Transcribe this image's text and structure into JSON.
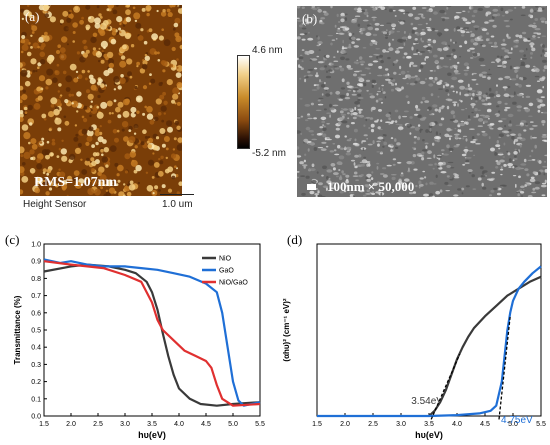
{
  "panel_a": {
    "label": "(a)",
    "rms": "RMS=1.07nm",
    "sensor": "Height Sensor",
    "scalebar": "1.0 um",
    "colorbar_max": "4.6 nm",
    "colorbar_min": "-5.2 nm"
  },
  "panel_b": {
    "label": "(b)",
    "caption": "100nm  × 50,000"
  },
  "colors": {
    "NiO": "#3a3a3a",
    "GaO": "#1f6fd6",
    "NiO_GaO": "#e03030"
  },
  "chart_data": [
    {
      "panel": "(c)",
      "type": "line",
      "xlabel": "hυ(eV)",
      "ylabel": "Transmittance (%)",
      "xlim": [
        1.5,
        5.5
      ],
      "ylim": [
        0.0,
        1.0
      ],
      "xticks": [
        "1.5",
        "2.0",
        "2.5",
        "3.0",
        "3.5",
        "4.0",
        "4.5",
        "5.0",
        "5.5"
      ],
      "yticks": [
        "0.0",
        "0.1",
        "0.2",
        "0.3",
        "0.4",
        "0.5",
        "0.6",
        "0.7",
        "0.8",
        "0.9",
        "1.0"
      ],
      "legend": "top-right",
      "series": [
        {
          "name": "NiO",
          "color": "#3a3a3a",
          "points": [
            [
              1.5,
              0.84
            ],
            [
              2.0,
              0.87
            ],
            [
              2.3,
              0.88
            ],
            [
              2.7,
              0.87
            ],
            [
              3.0,
              0.85
            ],
            [
              3.2,
              0.83
            ],
            [
              3.4,
              0.78
            ],
            [
              3.5,
              0.72
            ],
            [
              3.6,
              0.62
            ],
            [
              3.7,
              0.48
            ],
            [
              3.8,
              0.35
            ],
            [
              3.9,
              0.24
            ],
            [
              4.0,
              0.16
            ],
            [
              4.2,
              0.1
            ],
            [
              4.4,
              0.07
            ],
            [
              4.7,
              0.06
            ],
            [
              5.0,
              0.07
            ],
            [
              5.5,
              0.08
            ]
          ]
        },
        {
          "name": "GaO",
          "color": "#1f6fd6",
          "points": [
            [
              1.5,
              0.91
            ],
            [
              1.8,
              0.89
            ],
            [
              2.0,
              0.9
            ],
            [
              2.3,
              0.88
            ],
            [
              2.6,
              0.87
            ],
            [
              3.0,
              0.87
            ],
            [
              3.3,
              0.86
            ],
            [
              3.6,
              0.85
            ],
            [
              3.9,
              0.83
            ],
            [
              4.2,
              0.81
            ],
            [
              4.5,
              0.77
            ],
            [
              4.7,
              0.72
            ],
            [
              4.8,
              0.6
            ],
            [
              4.9,
              0.4
            ],
            [
              5.0,
              0.2
            ],
            [
              5.1,
              0.09
            ],
            [
              5.2,
              0.06
            ],
            [
              5.5,
              0.08
            ]
          ]
        },
        {
          "name": "NiO/GaO",
          "color": "#e03030",
          "points": [
            [
              1.5,
              0.9
            ],
            [
              2.0,
              0.88
            ],
            [
              2.3,
              0.87
            ],
            [
              2.6,
              0.86
            ],
            [
              3.0,
              0.82
            ],
            [
              3.3,
              0.78
            ],
            [
              3.5,
              0.66
            ],
            [
              3.6,
              0.56
            ],
            [
              3.7,
              0.5
            ],
            [
              3.9,
              0.44
            ],
            [
              4.1,
              0.38
            ],
            [
              4.3,
              0.35
            ],
            [
              4.5,
              0.32
            ],
            [
              4.6,
              0.28
            ],
            [
              4.7,
              0.18
            ],
            [
              4.8,
              0.1
            ],
            [
              5.0,
              0.06
            ],
            [
              5.5,
              0.07
            ]
          ]
        }
      ]
    },
    {
      "panel": "(d)",
      "type": "line",
      "xlabel": "hυ(eV)",
      "ylabel": "(αhυ)² (cm⁻¹ eV)²",
      "xlim": [
        1.5,
        5.5
      ],
      "ylim": [
        0,
        1
      ],
      "xticks": [
        "1.5",
        "2.0",
        "2.5",
        "3.0",
        "3.5",
        "4.0",
        "4.5",
        "5.0",
        "5.5"
      ],
      "annotations": [
        {
          "text": "3.54eV",
          "x": 3.54,
          "color": "#3a3a3a"
        },
        {
          "text": "4.75eV",
          "x": 4.75,
          "color": "#1f6fd6"
        }
      ],
      "series": [
        {
          "color": "#3a3a3a",
          "points": [
            [
              3.5,
              0.0
            ],
            [
              3.6,
              0.03
            ],
            [
              3.7,
              0.08
            ],
            [
              3.8,
              0.15
            ],
            [
              3.9,
              0.24
            ],
            [
              4.0,
              0.33
            ],
            [
              4.1,
              0.4
            ],
            [
              4.2,
              0.46
            ],
            [
              4.3,
              0.51
            ],
            [
              4.5,
              0.58
            ],
            [
              4.7,
              0.64
            ],
            [
              4.9,
              0.7
            ],
            [
              5.1,
              0.74
            ],
            [
              5.3,
              0.78
            ],
            [
              5.5,
              0.81
            ]
          ]
        },
        {
          "color": "#1f6fd6",
          "points": [
            [
              1.5,
              0.0
            ],
            [
              2.5,
              0.0
            ],
            [
              3.5,
              0.0
            ],
            [
              4.0,
              0.005
            ],
            [
              4.4,
              0.015
            ],
            [
              4.6,
              0.03
            ],
            [
              4.7,
              0.06
            ],
            [
              4.8,
              0.2
            ],
            [
              4.85,
              0.35
            ],
            [
              4.9,
              0.5
            ],
            [
              4.95,
              0.6
            ],
            [
              5.0,
              0.67
            ],
            [
              5.1,
              0.74
            ],
            [
              5.2,
              0.78
            ],
            [
              5.35,
              0.83
            ],
            [
              5.5,
              0.87
            ]
          ]
        }
      ],
      "fits": [
        {
          "color": "#000000",
          "points": [
            [
              3.54,
              -0.02
            ],
            [
              4.05,
              0.36
            ]
          ]
        },
        {
          "color": "#000000",
          "points": [
            [
              4.75,
              -0.02
            ],
            [
              4.95,
              0.58
            ]
          ]
        }
      ]
    }
  ]
}
